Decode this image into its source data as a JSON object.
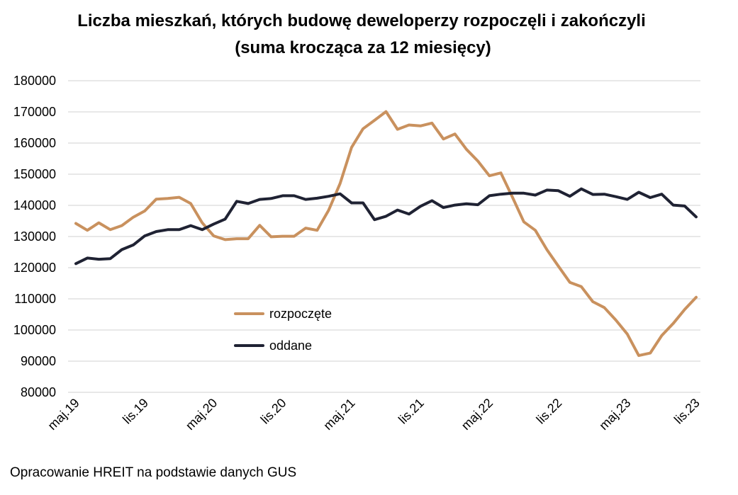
{
  "chart_data": {
    "type": "line",
    "title_line1": "Liczba mieszkań, których budowę deweloperzy rozpoczęli i zakończyli",
    "title_line2": "(suma krocząca za 12 miesięcy)",
    "xlabel": "",
    "ylabel": "",
    "ylim": [
      80000,
      180000
    ],
    "yticks": [
      "80000",
      "90000",
      "100000",
      "110000",
      "120000",
      "130000",
      "140000",
      "150000",
      "160000",
      "170000",
      "180000"
    ],
    "x_tick_labels": [
      {
        "index": 0,
        "label": "maj.19"
      },
      {
        "index": 6,
        "label": "lis.19"
      },
      {
        "index": 12,
        "label": "maj.20"
      },
      {
        "index": 18,
        "label": "lis.20"
      },
      {
        "index": 24,
        "label": "maj.21"
      },
      {
        "index": 30,
        "label": "lis.21"
      },
      {
        "index": 36,
        "label": "maj.22"
      },
      {
        "index": 42,
        "label": "lis.22"
      },
      {
        "index": 48,
        "label": "maj.23"
      },
      {
        "index": 54,
        "label": "lis.23"
      }
    ],
    "grid": true,
    "legend_position": "center-left",
    "series": [
      {
        "name": "rozpoczęte",
        "color": "#C9915E",
        "values": [
          134200,
          132000,
          134400,
          132200,
          133500,
          136200,
          138200,
          142000,
          142200,
          142600,
          140600,
          134400,
          130200,
          129000,
          129300,
          129300,
          133600,
          129900,
          130100,
          130100,
          132700,
          132000,
          138400,
          147000,
          158600,
          164600,
          167300,
          170100,
          164400,
          165800,
          165500,
          166400,
          161300,
          162900,
          158000,
          154200,
          149500,
          150400,
          142700,
          134700,
          132000,
          125800,
          120500,
          115300,
          113900,
          109100,
          107200,
          103200,
          98700,
          91800,
          92600,
          98200,
          102100,
          106600,
          110500
        ]
      },
      {
        "name": "oddane",
        "color": "#1F2233",
        "values": [
          121300,
          123100,
          122700,
          122900,
          125800,
          127300,
          130200,
          131600,
          132200,
          132200,
          133500,
          132200,
          134000,
          135600,
          141300,
          140600,
          141900,
          142200,
          143100,
          143100,
          141900,
          142300,
          142900,
          143700,
          140800,
          140800,
          135400,
          136500,
          138500,
          137200,
          139700,
          141500,
          139300,
          140100,
          140500,
          140200,
          143100,
          143600,
          143900,
          143900,
          143300,
          144900,
          144700,
          142900,
          145300,
          143500,
          143600,
          142800,
          141900,
          144200,
          142500,
          143600,
          140100,
          139800,
          136300
        ]
      }
    ]
  },
  "source_note": "Opracowanie HREIT na podstawie danych GUS"
}
